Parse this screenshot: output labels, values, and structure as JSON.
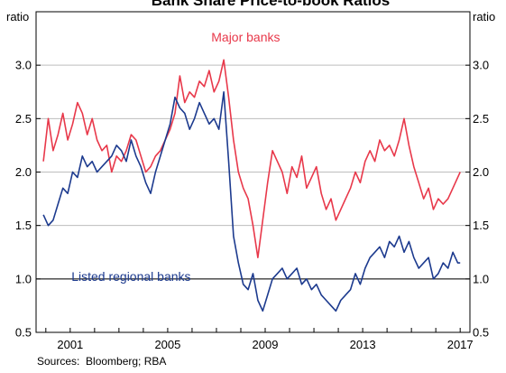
{
  "chart_data": {
    "type": "line",
    "title": "Bank Share Price-to-book Ratios",
    "y_unit_left": "ratio",
    "y_unit_right": "ratio",
    "ylim": [
      0.5,
      3.5
    ],
    "y_ticks": [
      0.5,
      1.0,
      1.5,
      2.0,
      2.5,
      3.0
    ],
    "y_tick_labels": [
      "0.5",
      "1.0",
      "1.5",
      "2.0",
      "2.5",
      "3.0"
    ],
    "reference_line": 1.0,
    "xlim": [
      1999.6,
      2017.4
    ],
    "x_ticks": [
      2001,
      2005,
      2009,
      2013,
      2017
    ],
    "x_tick_labels": [
      "2001",
      "2005",
      "2009",
      "2013",
      "2017"
    ],
    "grid": true,
    "legend": "inline labels",
    "series": [
      {
        "name": "Major banks",
        "color": "#e8384a",
        "label_year": 2008.2,
        "label_value": 3.22,
        "x": [
          1999.9,
          2000.1,
          2000.3,
          2000.5,
          2000.7,
          2000.9,
          2001.1,
          2001.3,
          2001.5,
          2001.7,
          2001.9,
          2002.1,
          2002.3,
          2002.5,
          2002.7,
          2002.9,
          2003.1,
          2003.3,
          2003.5,
          2003.7,
          2003.9,
          2004.1,
          2004.3,
          2004.5,
          2004.7,
          2004.9,
          2005.1,
          2005.3,
          2005.5,
          2005.7,
          2005.9,
          2006.1,
          2006.3,
          2006.5,
          2006.7,
          2006.9,
          2007.1,
          2007.3,
          2007.5,
          2007.7,
          2007.9,
          2008.1,
          2008.3,
          2008.5,
          2008.7,
          2008.9,
          2009.1,
          2009.3,
          2009.5,
          2009.7,
          2009.9,
          2010.1,
          2010.3,
          2010.5,
          2010.7,
          2010.9,
          2011.1,
          2011.3,
          2011.5,
          2011.7,
          2011.9,
          2012.1,
          2012.3,
          2012.5,
          2012.7,
          2012.9,
          2013.1,
          2013.3,
          2013.5,
          2013.7,
          2013.9,
          2014.1,
          2014.3,
          2014.5,
          2014.7,
          2014.9,
          2015.1,
          2015.3,
          2015.5,
          2015.7,
          2015.9,
          2016.1,
          2016.3,
          2016.5,
          2016.7,
          2016.9,
          2017.0
        ],
        "values": [
          2.1,
          2.5,
          2.2,
          2.35,
          2.55,
          2.3,
          2.45,
          2.65,
          2.55,
          2.35,
          2.5,
          2.3,
          2.2,
          2.25,
          2.0,
          2.15,
          2.1,
          2.2,
          2.35,
          2.3,
          2.15,
          2.0,
          2.05,
          2.15,
          2.2,
          2.3,
          2.4,
          2.55,
          2.9,
          2.65,
          2.75,
          2.7,
          2.85,
          2.8,
          2.95,
          2.75,
          2.85,
          3.05,
          2.7,
          2.3,
          2.0,
          1.85,
          1.75,
          1.5,
          1.2,
          1.55,
          1.9,
          2.2,
          2.1,
          2.0,
          1.8,
          2.05,
          1.95,
          2.15,
          1.85,
          1.95,
          2.05,
          1.8,
          1.65,
          1.75,
          1.55,
          1.65,
          1.75,
          1.85,
          2.0,
          1.9,
          2.1,
          2.2,
          2.1,
          2.3,
          2.2,
          2.25,
          2.15,
          2.3,
          2.5,
          2.25,
          2.05,
          1.9,
          1.75,
          1.85,
          1.65,
          1.75,
          1.7,
          1.75,
          1.85,
          1.95,
          2.0
        ]
      },
      {
        "name": "Listed regional banks",
        "color": "#1c3a8e",
        "label_year": 2003.5,
        "label_value": 0.98,
        "x": [
          1999.9,
          2000.1,
          2000.3,
          2000.5,
          2000.7,
          2000.9,
          2001.1,
          2001.3,
          2001.5,
          2001.7,
          2001.9,
          2002.1,
          2002.3,
          2002.5,
          2002.7,
          2002.9,
          2003.1,
          2003.3,
          2003.5,
          2003.7,
          2003.9,
          2004.1,
          2004.3,
          2004.5,
          2004.7,
          2004.9,
          2005.1,
          2005.3,
          2005.5,
          2005.7,
          2005.9,
          2006.1,
          2006.3,
          2006.5,
          2006.7,
          2006.9,
          2007.1,
          2007.3,
          2007.5,
          2007.7,
          2007.9,
          2008.1,
          2008.3,
          2008.5,
          2008.7,
          2008.9,
          2009.1,
          2009.3,
          2009.5,
          2009.7,
          2009.9,
          2010.1,
          2010.3,
          2010.5,
          2010.7,
          2010.9,
          2011.1,
          2011.3,
          2011.5,
          2011.7,
          2011.9,
          2012.1,
          2012.3,
          2012.5,
          2012.7,
          2012.9,
          2013.1,
          2013.3,
          2013.5,
          2013.7,
          2013.9,
          2014.1,
          2014.3,
          2014.5,
          2014.7,
          2014.9,
          2015.1,
          2015.3,
          2015.5,
          2015.7,
          2015.9,
          2016.1,
          2016.3,
          2016.5,
          2016.7,
          2016.9,
          2017.0
        ],
        "values": [
          1.6,
          1.5,
          1.55,
          1.7,
          1.85,
          1.8,
          2.0,
          1.95,
          2.15,
          2.05,
          2.1,
          2.0,
          2.05,
          2.1,
          2.15,
          2.25,
          2.2,
          2.1,
          2.3,
          2.15,
          2.05,
          1.9,
          1.8,
          2.0,
          2.15,
          2.3,
          2.45,
          2.7,
          2.6,
          2.55,
          2.4,
          2.5,
          2.65,
          2.55,
          2.45,
          2.5,
          2.4,
          2.75,
          2.1,
          1.4,
          1.15,
          0.95,
          0.9,
          1.05,
          0.8,
          0.7,
          0.85,
          1.0,
          1.05,
          1.1,
          1.0,
          1.05,
          1.1,
          0.95,
          1.0,
          0.9,
          0.95,
          0.85,
          0.8,
          0.75,
          0.7,
          0.8,
          0.85,
          0.9,
          1.05,
          0.95,
          1.1,
          1.2,
          1.25,
          1.3,
          1.2,
          1.35,
          1.3,
          1.4,
          1.25,
          1.35,
          1.2,
          1.1,
          1.15,
          1.2,
          1.0,
          1.05,
          1.15,
          1.1,
          1.25,
          1.15,
          1.15
        ]
      }
    ],
    "sources": "Sources:  Bloomberg; RBA"
  }
}
